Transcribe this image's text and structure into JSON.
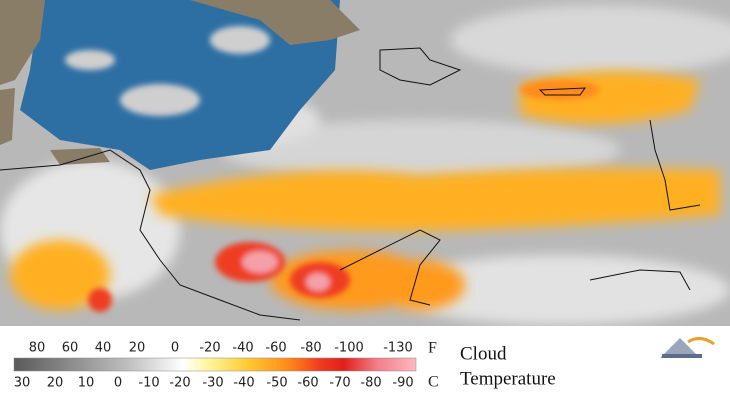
{
  "legend": {
    "fahrenheit": [
      "80",
      "60",
      "40",
      "20",
      "0",
      "-20",
      "-40",
      "-60",
      "-80",
      "-100",
      "-130"
    ],
    "fahrenheit_unit": "F",
    "celsius": [
      "30",
      "20",
      "10",
      "0",
      "-10",
      "-20",
      "-30",
      "-40",
      "-50",
      "-60",
      "-70",
      "-80",
      "-90"
    ],
    "celsius_unit": "C"
  },
  "title": {
    "line1": "Cloud",
    "line2": "Temperature"
  }
}
